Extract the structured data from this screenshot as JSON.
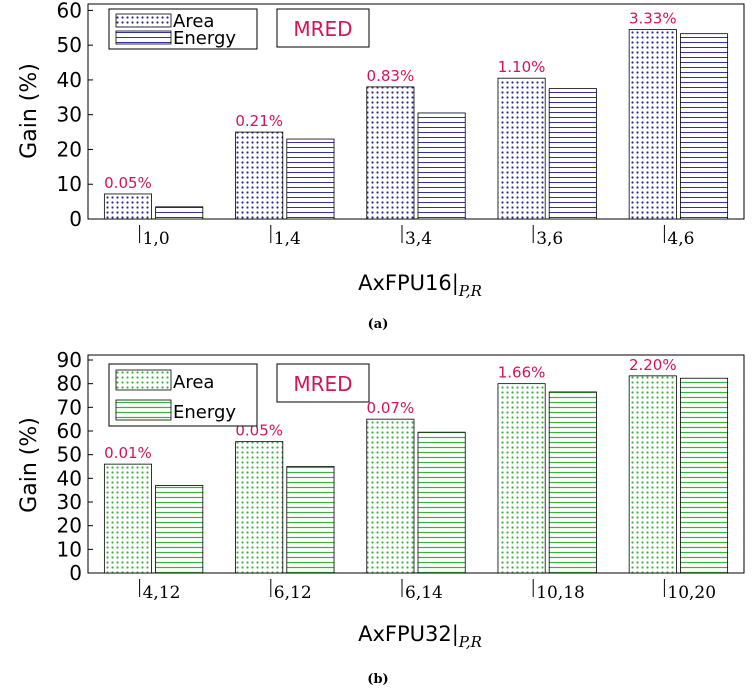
{
  "colors": {
    "area_a": "#2b2b8c",
    "energy_a": "#3030a8",
    "area_b": "#3cb03c",
    "energy_b": "#3cb03c",
    "annotation": "#d4145a",
    "axis": "#000000"
  },
  "chart_data": [
    {
      "type": "bar",
      "caption": "(a)",
      "xlabel_main": "AxFPU16",
      "xlabel_sub": "P,R",
      "ylabel": "Gain (%)",
      "ylim": [
        0,
        60
      ],
      "yticks": [
        0,
        10,
        20,
        30,
        40,
        50,
        60
      ],
      "categories": [
        "1,0",
        "1,4",
        "3,4",
        "3,6",
        "4,6"
      ],
      "legend_position": "top-left",
      "series": [
        {
          "name": "Area",
          "values": [
            7.2,
            25.0,
            38.0,
            40.5,
            54.5
          ]
        },
        {
          "name": "Energy",
          "values": [
            3.5,
            23.0,
            30.5,
            37.5,
            53.3
          ]
        }
      ],
      "annotation_title": "MRED",
      "annotations": [
        "0.05%",
        "0.21%",
        "0.83%",
        "1.10%",
        "3.33%"
      ]
    },
    {
      "type": "bar",
      "caption": "(b)",
      "xlabel_main": "AxFPU32",
      "xlabel_sub": "P,R",
      "ylabel": "Gain (%)",
      "ylim": [
        0,
        90
      ],
      "yticks": [
        0,
        10,
        20,
        30,
        40,
        50,
        60,
        70,
        80,
        90
      ],
      "categories": [
        "4,12",
        "6,12",
        "6,14",
        "10,18",
        "10,20"
      ],
      "legend_position": "top-left",
      "series": [
        {
          "name": "Area",
          "values": [
            46.0,
            55.5,
            65.0,
            80.0,
            83.3
          ]
        },
        {
          "name": "Energy",
          "values": [
            37.0,
            45.0,
            59.5,
            76.5,
            82.3
          ]
        }
      ],
      "annotation_title": "MRED",
      "annotations": [
        "0.01%",
        "0.05%",
        "0.07%",
        "1.66%",
        "2.20%"
      ]
    }
  ]
}
